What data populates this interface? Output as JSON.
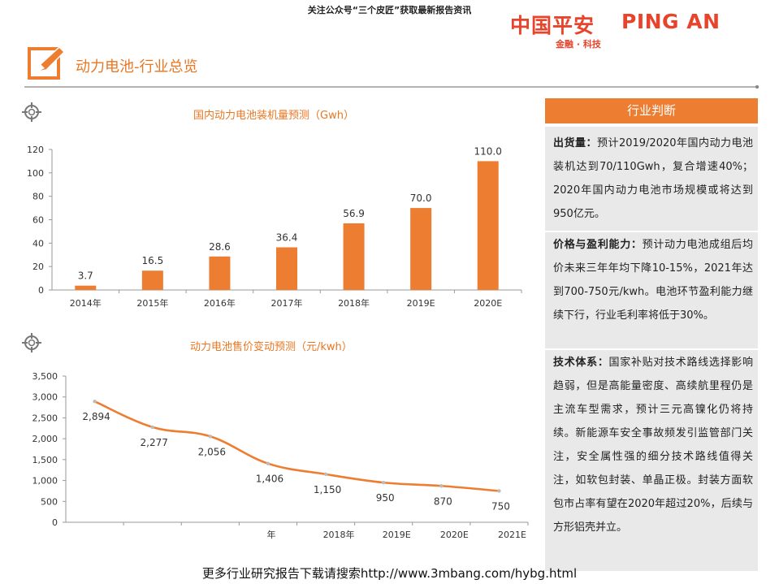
{
  "header": {
    "notice": "关注公众号“三个皮匠”获取最新报告资讯",
    "logo_cn": "中国平安",
    "logo_en": "PING AN",
    "logo_sub": "金融 · 科技",
    "page_title": "动力电池-行业总览"
  },
  "colors": {
    "accent": "#ed7d31",
    "logo_red": "#e8442c",
    "panel_bg": "#e9e9e9"
  },
  "chart_data": [
    {
      "type": "bar",
      "title": "国内动力电池装机量预测（Gwh）",
      "categories": [
        "2014年",
        "2015年",
        "2016年",
        "2017年",
        "2018年",
        "2019E",
        "2020E"
      ],
      "values": [
        3.7,
        16.5,
        28.6,
        36.4,
        56.9,
        70.0,
        110.0
      ],
      "value_labels": [
        "3.7",
        "16.5",
        "28.6",
        "36.4",
        "56.9",
        "70.0",
        "110.0"
      ],
      "yticks": [
        "0",
        "20",
        "40",
        "60",
        "80",
        "100",
        "120"
      ],
      "ylim": [
        0,
        120
      ],
      "color": "#ed7d31",
      "grid": false,
      "legend": "none"
    },
    {
      "type": "line",
      "title": "动力电池售价变动预测（元/kwh）",
      "x_labels": [
        "",
        "",
        "",
        "年",
        "2018年",
        "2019E",
        "2020E",
        "2021E"
      ],
      "label_tick_index": [
        3,
        4,
        5,
        6,
        7
      ],
      "points": [
        {
          "x": 0,
          "y": 2894,
          "label": "2,894"
        },
        {
          "x": 1,
          "y": 2277,
          "label": "2,277"
        },
        {
          "x": 2,
          "y": 2056,
          "label": "2,056"
        },
        {
          "x": 3,
          "y": 1406,
          "label": "1,406"
        },
        {
          "x": 4,
          "y": 1150,
          "label": "1,150"
        },
        {
          "x": 5,
          "y": 950,
          "label": "950"
        },
        {
          "x": 6,
          "y": 870,
          "label": "870"
        },
        {
          "x": 7,
          "y": 750,
          "label": "750"
        }
      ],
      "yticks": [
        "0",
        "500",
        "1,000",
        "1,500",
        "2,000",
        "2,500",
        "3,000",
        "3,500"
      ],
      "ylim": [
        0,
        3500
      ],
      "color": "#ed7d31",
      "grid": false,
      "legend": "none"
    }
  ],
  "panel": {
    "header": "行业判断",
    "blocks": [
      {
        "label": "出货量：",
        "text": "预计2019/2020年国内动力电池装机达到70/110Gwh，复合增速40%；2020年国内动力电池市场规模或将达到950亿元。"
      },
      {
        "label": "价格与盈利能力：",
        "text": "预计动力电池成组后均价未来三年年均下降10-15%，2021年达到700-750元/kwh。电池环节盈利能力继续下行，行业毛利率将低于30%。"
      },
      {
        "label": "技术体系：",
        "text": "国家补贴对技术路线选择影响趋弱，但是高能量密度、高续航里程仍是主流车型需求，预计三元高镍化仍将持续。新能源车安全事故频发引监管部门关注，安全属性强的细分技术路线值得关注，如软包封装、单晶正极。封装方面软包市占率有望在2020年超过20%，后续与方形铝壳并立。"
      }
    ]
  },
  "footer": {
    "text": "更多行业研究报告下载请搜索http://www.3mbang.com/hybg.html"
  }
}
